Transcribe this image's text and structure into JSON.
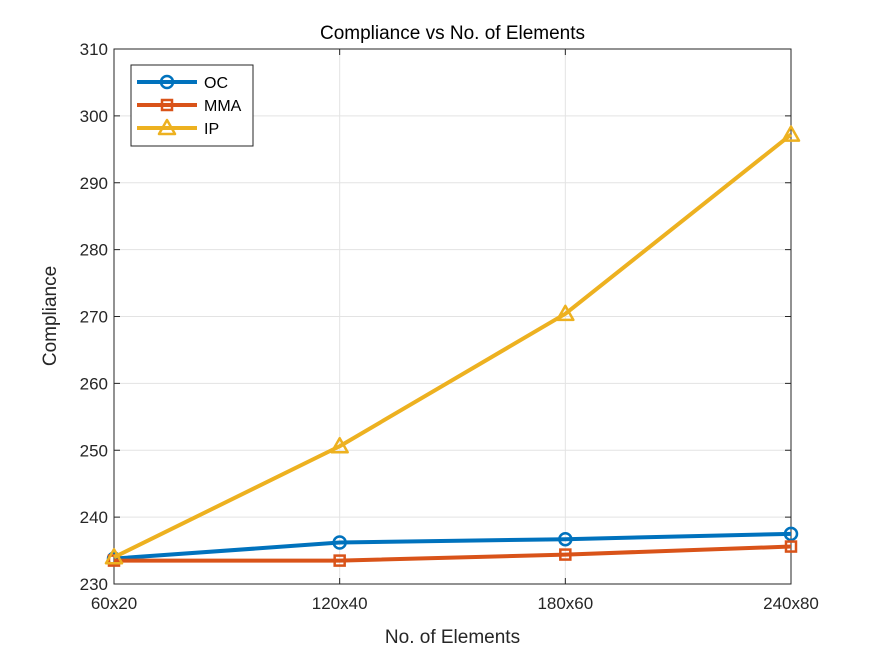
{
  "chart_data": {
    "type": "line",
    "title": "Compliance vs No. of Elements",
    "xlabel": "No. of Elements",
    "ylabel": "Compliance",
    "categories": [
      "60x20",
      "120x40",
      "180x60",
      "240x80"
    ],
    "ylim": [
      230,
      310
    ],
    "yticks": [
      230,
      240,
      250,
      260,
      270,
      280,
      290,
      300,
      310
    ],
    "grid": true,
    "legend_position": "top-left",
    "series": [
      {
        "name": "OC",
        "marker": "circle",
        "color": "#0072BD",
        "values": [
          233.8,
          236.2,
          236.7,
          237.5
        ]
      },
      {
        "name": "MMA",
        "marker": "square",
        "color": "#D95319",
        "values": [
          233.5,
          233.5,
          234.4,
          235.6
        ]
      },
      {
        "name": "IP",
        "marker": "triangle",
        "color": "#EDB120",
        "values": [
          234.0,
          250.6,
          270.4,
          297.2
        ]
      }
    ]
  }
}
